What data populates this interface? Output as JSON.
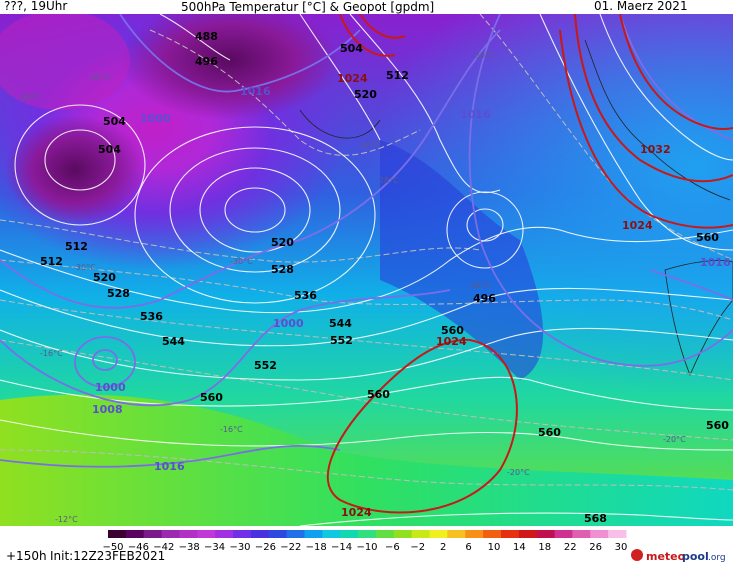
{
  "header": {
    "left": "???, 19Uhr",
    "title": "500hPa Temperatur [°C] & Geopot [gpdm]",
    "date": "01. Maerz 2021"
  },
  "footer": {
    "forecast": "+150h",
    "init": "Init:12Z23FEB2021",
    "brand_a": "meteo",
    "brand_b": "pool",
    "brand_c": ".org"
  },
  "colorbar": {
    "ticks": [
      "-50",
      "-46",
      "-42",
      "-38",
      "-34",
      "-30",
      "-26",
      "-22",
      "-18",
      "-14",
      "-10",
      "-6",
      "-2",
      "2",
      "6",
      "10",
      "14",
      "18",
      "22",
      "26",
      "30"
    ],
    "colors": [
      "#3a0030",
      "#5a0060",
      "#7a1a8a",
      "#9a2ab0",
      "#b030c8",
      "#c038d8",
      "#a030e0",
      "#7030e8",
      "#4a30e0",
      "#3048e0",
      "#2070e8",
      "#10a0f0",
      "#10c8e0",
      "#10d8b0",
      "#30e080",
      "#60e040",
      "#90e020",
      "#c8e818",
      "#f0f020",
      "#f8c020",
      "#f89018",
      "#f06010",
      "#e83010",
      "#d01818",
      "#c01050",
      "#d03090",
      "#e060b0",
      "#f090d0",
      "#f8c0e8"
    ]
  },
  "geopotential_labels": [
    "488",
    "496",
    "504",
    "512",
    "520",
    "528",
    "536",
    "544",
    "552",
    "560",
    "568",
    "496",
    "504",
    "512",
    "520",
    "528",
    "536",
    "544",
    "552",
    "560",
    "560",
    "560",
    "504",
    "512",
    "520"
  ],
  "pressure_labels": [
    "1024",
    "1024",
    "1016",
    "1016",
    "1016",
    "1016",
    "1016",
    "1008",
    "1000",
    "1000",
    "1000",
    "1032",
    "1024",
    "1024",
    "1024",
    "1016",
    "1008"
  ],
  "temperature_labels": [
    "-30°C",
    "-30°C",
    "-30°C",
    "-30°C",
    "-30°C",
    "-28°C",
    "-28°C",
    "-16°C",
    "-16°C",
    "-12°C",
    "-20°C",
    "-20°C",
    "-40°C",
    "-40°C"
  ],
  "colors": {
    "geopot_line": "#ffffff",
    "isobar_line": "#6a5fe0",
    "high_line": "#c81818",
    "temp_line": "#999999"
  }
}
